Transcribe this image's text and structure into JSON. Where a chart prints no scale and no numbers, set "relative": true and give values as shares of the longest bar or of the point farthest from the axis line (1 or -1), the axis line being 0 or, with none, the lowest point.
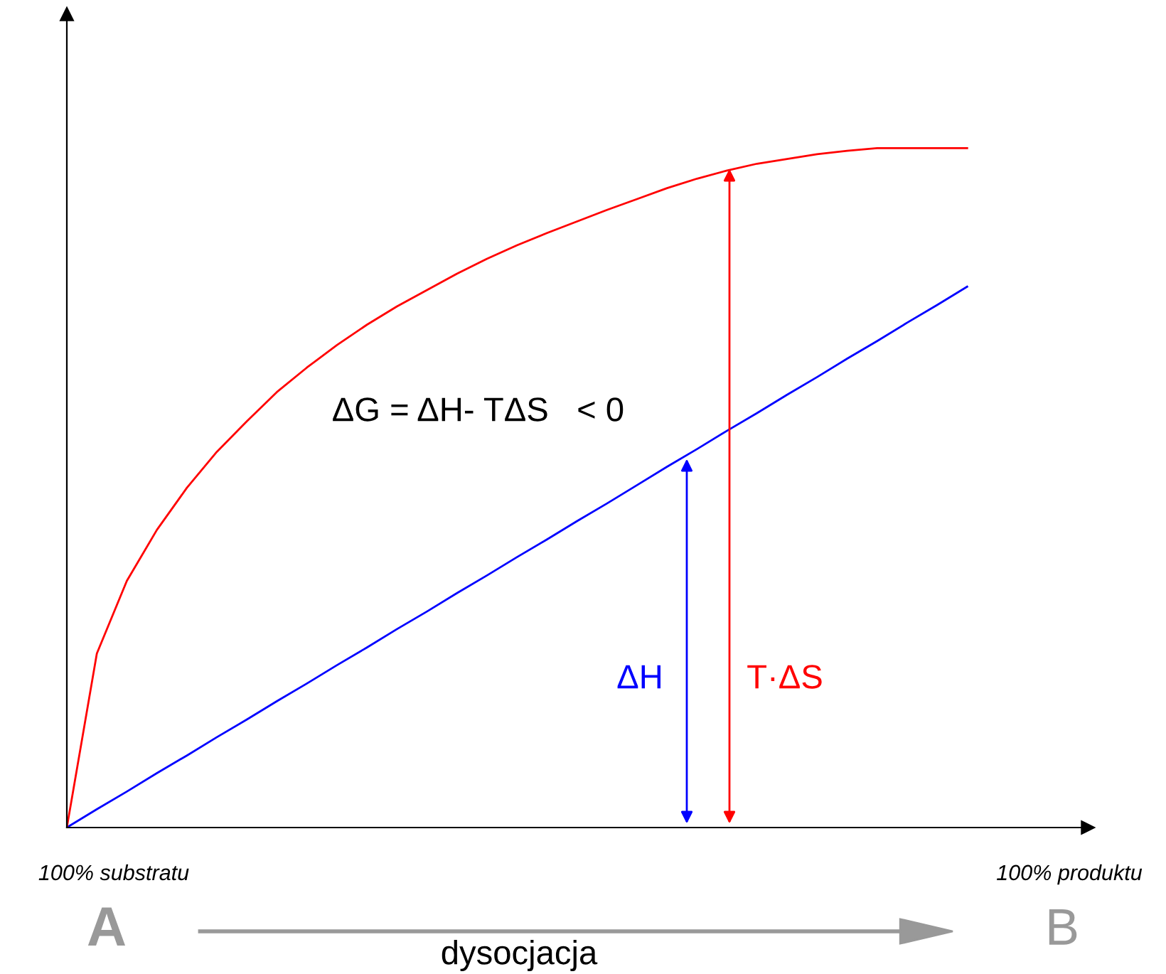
{
  "chart_data": {
    "type": "line",
    "relative": true,
    "categories": [
      null,
      null,
      null,
      null,
      null,
      null,
      null,
      null,
      null,
      null,
      null,
      null,
      null,
      null,
      null,
      null,
      null,
      null,
      null,
      null,
      null,
      null,
      null,
      null,
      null,
      null,
      null,
      null,
      null,
      null,
      null
    ],
    "series": [
      {
        "color": "#0000ff",
        "values": [
          0,
          0.027,
          0.053,
          0.08,
          0.106,
          0.133,
          0.159,
          0.186,
          0.212,
          0.239,
          0.265,
          0.292,
          0.318,
          0.345,
          0.371,
          0.398,
          0.424,
          0.451,
          0.477,
          0.504,
          0.531,
          0.557,
          0.584,
          0.61,
          0.637,
          0.663,
          0.69,
          0.716,
          0.743,
          0.769,
          0.796
        ]
      },
      {
        "color": "#ff0000",
        "values": [
          0,
          0.256,
          0.363,
          0.438,
          0.5,
          0.553,
          0.598,
          0.641,
          0.677,
          0.71,
          0.74,
          0.767,
          0.791,
          0.815,
          0.837,
          0.857,
          0.875,
          0.892,
          0.909,
          0.925,
          0.941,
          0.955,
          0.967,
          0.977,
          0.984,
          0.991,
          0.996,
          1.0,
          1.0,
          1.0,
          1.0
        ]
      }
    ],
    "annotations": [
      "100% substratu",
      "100% produktu",
      "ΔH",
      "T·ΔS",
      "ΔG = ΔH- TΔS   < 0",
      "A",
      "dysocjacja",
      "B"
    ],
    "legend": false,
    "marker": "none",
    "line_style": "solid"
  }
}
